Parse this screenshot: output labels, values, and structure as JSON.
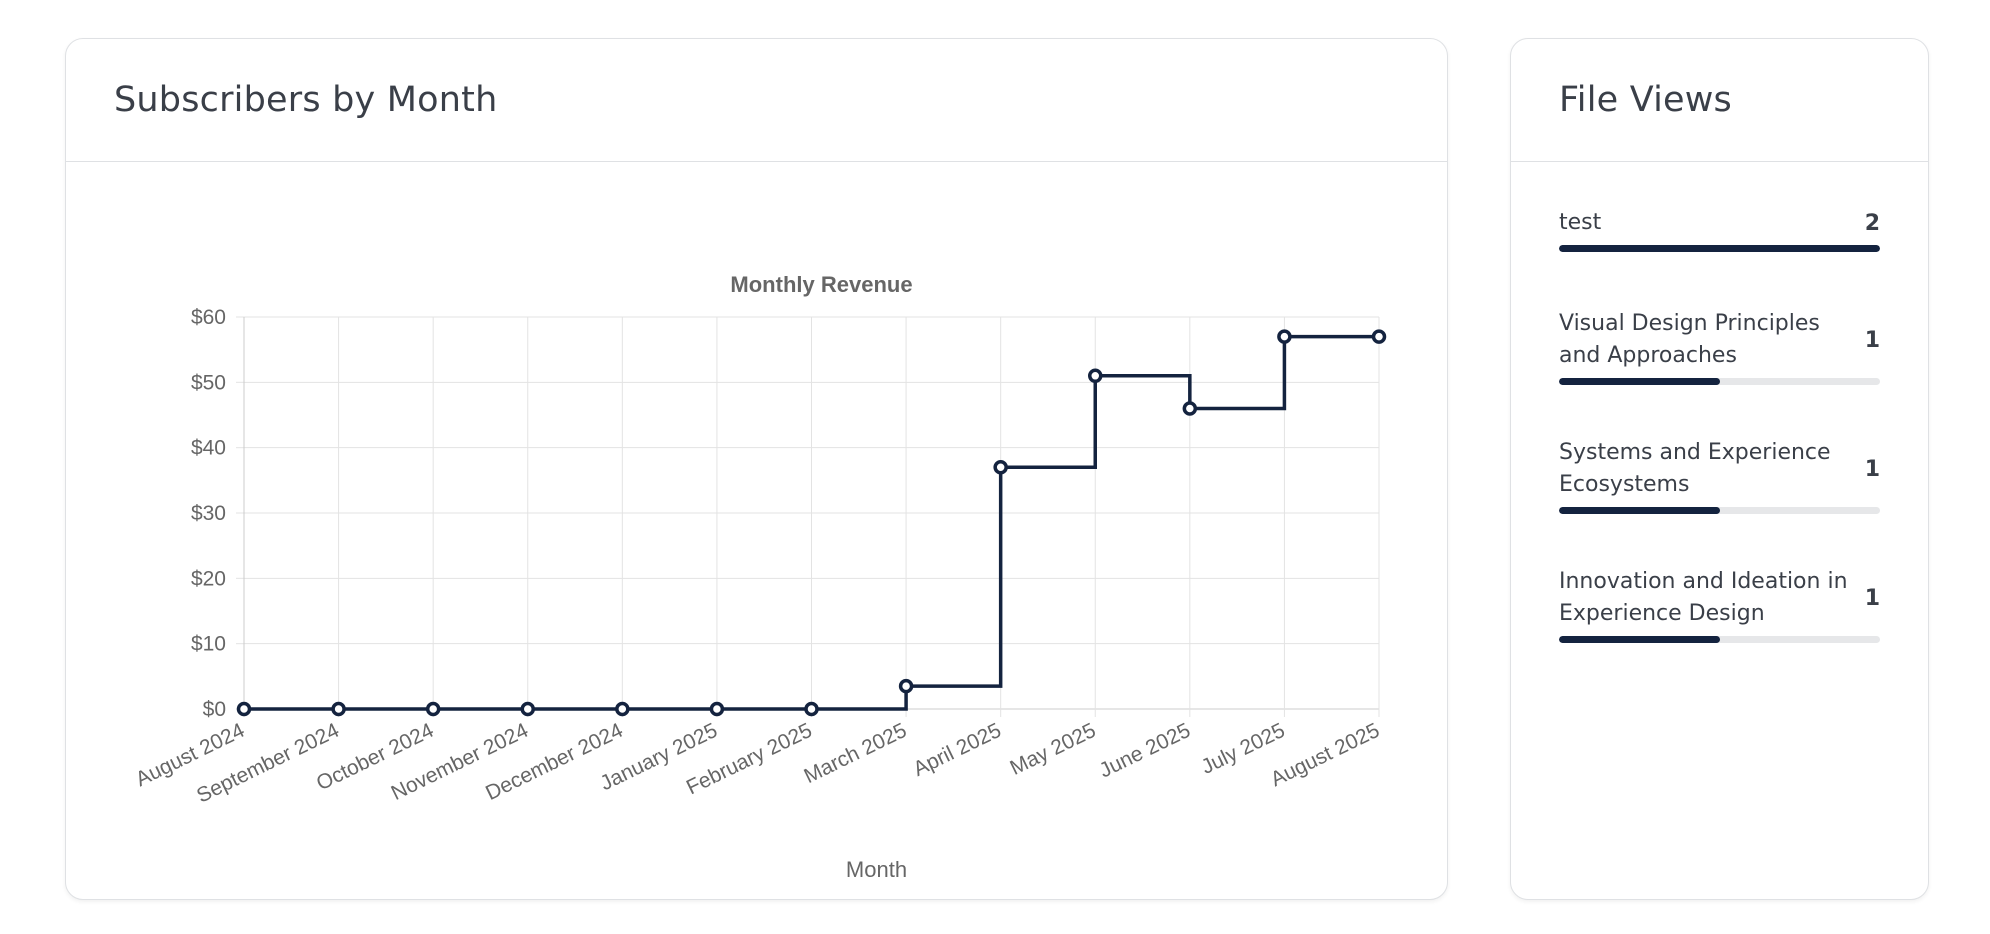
{
  "chart_card": {
    "title": "Subscribers by Month"
  },
  "views_card": {
    "title": "File Views",
    "max": 2,
    "items": [
      {
        "label": "test",
        "count": 2
      },
      {
        "label": "Visual Design Principles and Approaches",
        "count": 1
      },
      {
        "label": "Systems and Experience Ecosystems",
        "count": 1
      },
      {
        "label": "Innovation and Ideation in Experience Design",
        "count": 1
      }
    ]
  },
  "colors": {
    "line": "#14233f",
    "grid": "#e3e3e3",
    "text": "#666666",
    "bar_fill": "#14233f",
    "bar_track": "#e6e7e9"
  },
  "chart_data": {
    "type": "line",
    "step": "after",
    "title": "Monthly Revenue",
    "xlabel": "Month",
    "ylabel": "",
    "ylim": [
      0,
      60
    ],
    "yticks": [
      0,
      10,
      20,
      30,
      40,
      50,
      60
    ],
    "ytick_labels": [
      "$0",
      "$10",
      "$20",
      "$30",
      "$40",
      "$50",
      "$60"
    ],
    "grid": true,
    "legend": "none",
    "categories": [
      "August 2024",
      "September 2024",
      "October 2024",
      "November 2024",
      "December 2024",
      "January 2025",
      "February 2025",
      "March 2025",
      "April 2025",
      "May 2025",
      "June 2025",
      "July 2025",
      "August 2025"
    ],
    "series": [
      {
        "values": [
          0,
          0,
          0,
          0,
          0,
          0,
          0,
          3.5,
          37,
          51,
          46,
          57,
          57
        ]
      }
    ]
  }
}
